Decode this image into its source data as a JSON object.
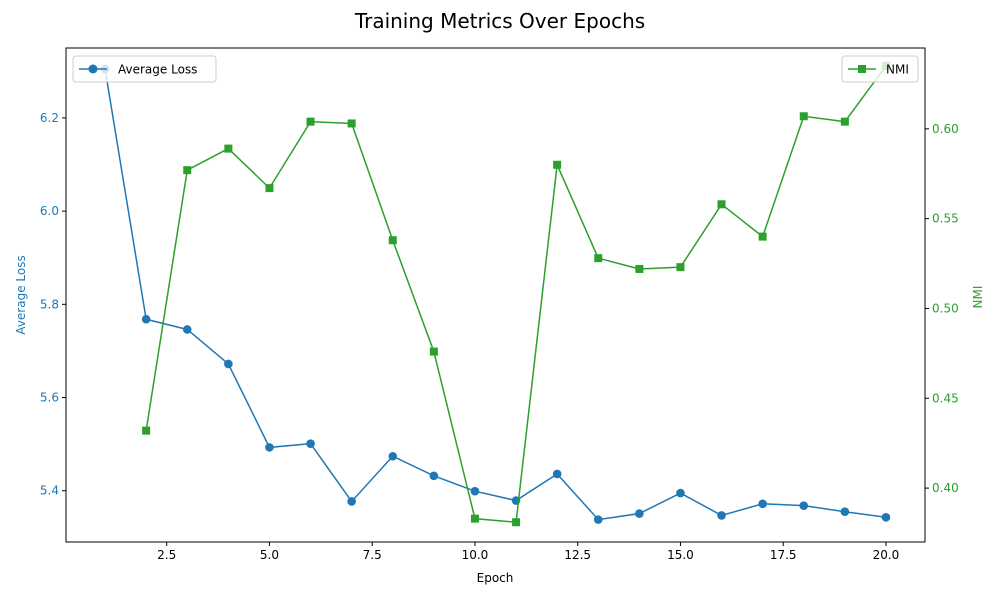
{
  "chart_data": {
    "type": "line",
    "title": "Training Metrics Over Epochs",
    "xlabel": "Epoch",
    "ylabel_left": "Average Loss",
    "ylabel_right": "NMI",
    "xlim": [
      0.05,
      20.95
    ],
    "ylim_left": [
      5.29,
      6.35
    ],
    "ylim_right": [
      0.37,
      0.645
    ],
    "x_ticks": [
      2.5,
      5.0,
      7.5,
      10.0,
      12.5,
      15.0,
      17.5,
      20.0
    ],
    "x_tick_labels": [
      "2.5",
      "5.0",
      "7.5",
      "10.0",
      "12.5",
      "15.0",
      "17.5",
      "20.0"
    ],
    "y_left_ticks": [
      5.4,
      5.6,
      5.8,
      6.0,
      6.2
    ],
    "y_left_tick_labels": [
      "5.4",
      "5.6",
      "5.8",
      "6.0",
      "6.2"
    ],
    "y_right_ticks": [
      0.4,
      0.45,
      0.5,
      0.55,
      0.6
    ],
    "y_right_tick_labels": [
      "0.40",
      "0.45",
      "0.50",
      "0.55",
      "0.60"
    ],
    "grid": false,
    "series": [
      {
        "name": "Average Loss",
        "axis": "left",
        "color": "#1f77b4",
        "marker": "circle",
        "legend_position": "top-left",
        "x": [
          1,
          2,
          3,
          4,
          5,
          6,
          7,
          8,
          9,
          10,
          11,
          12,
          13,
          14,
          15,
          16,
          17,
          18,
          19,
          20
        ],
        "values": [
          6.305,
          5.768,
          5.746,
          5.672,
          5.493,
          5.501,
          5.377,
          5.474,
          5.432,
          5.399,
          5.379,
          5.436,
          5.338,
          5.351,
          5.395,
          5.347,
          5.372,
          5.368,
          5.355,
          5.343
        ]
      },
      {
        "name": "NMI",
        "axis": "right",
        "color": "#2ca02c",
        "marker": "square",
        "legend_position": "top-right",
        "x": [
          2,
          3,
          4,
          5,
          6,
          7,
          8,
          9,
          10,
          11,
          12,
          13,
          14,
          15,
          16,
          17,
          18,
          19,
          20
        ],
        "values": [
          0.432,
          0.577,
          0.589,
          0.567,
          0.604,
          0.603,
          0.538,
          0.476,
          0.383,
          0.381,
          0.58,
          0.528,
          0.522,
          0.523,
          0.558,
          0.54,
          0.607,
          0.604,
          0.635
        ]
      }
    ]
  }
}
